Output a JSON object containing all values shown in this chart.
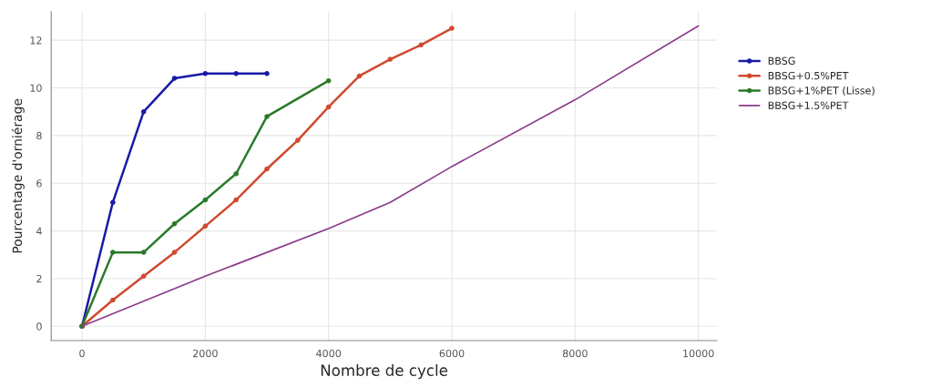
{
  "chart_data": {
    "type": "line",
    "xlabel": "Nombre de cycle",
    "ylabel": "Pourcentage d'orniérage",
    "xlim": [
      -500,
      10300
    ],
    "ylim": [
      -0.6,
      13.2
    ],
    "xticks": [
      0,
      2000,
      4000,
      6000,
      8000,
      10000
    ],
    "yticks": [
      0,
      2,
      4,
      6,
      8,
      10,
      12
    ],
    "grid": true,
    "legend": "right",
    "line_style": "solid",
    "series": [
      {
        "name": "BBSG",
        "color": "#1a1aa6",
        "marker": "circle",
        "x": [
          0,
          500,
          1000,
          1500,
          2000,
          2500,
          3000
        ],
        "values": [
          0,
          5.2,
          9.0,
          10.4,
          10.6,
          10.6,
          10.6
        ]
      },
      {
        "name": "BBSG+0.5%PET",
        "color": "#d04a30",
        "marker": "circle",
        "x": [
          0,
          500,
          1000,
          1500,
          2000,
          2500,
          3000,
          3500,
          4000,
          4500,
          5000,
          5500,
          6000
        ],
        "values": [
          0,
          1.1,
          2.1,
          3.1,
          4.2,
          5.3,
          6.6,
          7.8,
          9.2,
          10.5,
          11.2,
          11.8,
          12.5
        ]
      },
      {
        "name": "BBSG+1%PET (Lisse)",
        "color": "#2a7a2a",
        "marker": "circle",
        "x": [
          0,
          500,
          1000,
          1500,
          2000,
          2500,
          3000,
          4000
        ],
        "values": [
          0,
          3.1,
          3.1,
          4.3,
          5.3,
          6.4,
          8.8,
          10.3
        ]
      },
      {
        "name": "BBSG+1.5%PET",
        "color": "#8b3a8b",
        "marker": "none",
        "x": [
          0,
          2000,
          4000,
          5000,
          6000,
          8000,
          10000
        ],
        "values": [
          0,
          2.1,
          4.1,
          5.2,
          6.7,
          9.5,
          12.6
        ]
      }
    ]
  }
}
